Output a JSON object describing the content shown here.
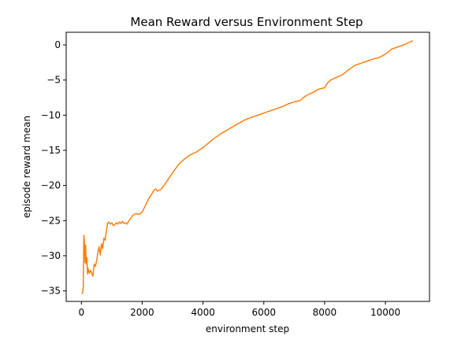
{
  "chart_data": {
    "type": "line",
    "title": "Mean Reward versus Environment Step",
    "xlabel": "environment step",
    "ylabel": "episode reward mean",
    "xlim": [
      -500,
      11450
    ],
    "ylim": [
      -36.5,
      1.8
    ],
    "xticks": [
      0,
      2000,
      4000,
      6000,
      8000,
      10000
    ],
    "yticks": [
      -35,
      -30,
      -25,
      -20,
      -15,
      -10,
      -5,
      0
    ],
    "grid": false,
    "series": [
      {
        "color": "#ff7f0e",
        "x": [
          0,
          40,
          60,
          80,
          100,
          120,
          140,
          160,
          180,
          200,
          220,
          260,
          300,
          340,
          380,
          420,
          460,
          500,
          540,
          580,
          620,
          660,
          700,
          740,
          780,
          820,
          860,
          900,
          950,
          1000,
          1050,
          1100,
          1150,
          1200,
          1250,
          1300,
          1350,
          1400,
          1450,
          1500,
          1550,
          1600,
          1650,
          1700,
          1800,
          1900,
          2000,
          2100,
          2200,
          2300,
          2400,
          2450,
          2500,
          2600,
          2700,
          2800,
          2900,
          3000,
          3200,
          3400,
          3600,
          3800,
          4000,
          4200,
          4400,
          4600,
          4800,
          5000,
          5200,
          5400,
          5600,
          5800,
          6000,
          6200,
          6400,
          6600,
          6800,
          7000,
          7200,
          7300,
          7400,
          7600,
          7800,
          8000,
          8100,
          8200,
          8400,
          8600,
          8800,
          9000,
          9200,
          9400,
          9600,
          9800,
          10000,
          10100,
          10200,
          10400,
          10600,
          10800,
          10900
        ],
        "y": [
          -35.4,
          -35.3,
          -34.5,
          -27.1,
          -28.0,
          -31.0,
          -28.5,
          -31.2,
          -30.3,
          -32.6,
          -31.8,
          -32.5,
          -32.1,
          -32.5,
          -32.9,
          -31.2,
          -31.5,
          -30.7,
          -29.6,
          -28.7,
          -29.9,
          -28.3,
          -29.0,
          -27.5,
          -27.8,
          -26.5,
          -25.4,
          -25.2,
          -25.5,
          -25.3,
          -25.7,
          -25.6,
          -25.3,
          -25.5,
          -25.2,
          -25.4,
          -25.1,
          -25.4,
          -25.3,
          -25.5,
          -25.1,
          -24.8,
          -24.5,
          -24.2,
          -24.0,
          -24.1,
          -23.8,
          -22.9,
          -22.0,
          -21.3,
          -20.6,
          -20.5,
          -20.8,
          -20.6,
          -20.1,
          -19.5,
          -18.8,
          -18.2,
          -17.0,
          -16.2,
          -15.6,
          -15.2,
          -14.6,
          -13.9,
          -13.2,
          -12.6,
          -12.1,
          -11.6,
          -11.1,
          -10.6,
          -10.3,
          -10.0,
          -9.7,
          -9.4,
          -9.1,
          -8.8,
          -8.4,
          -8.1,
          -7.9,
          -7.5,
          -7.2,
          -6.8,
          -6.3,
          -6.1,
          -5.4,
          -5.0,
          -4.6,
          -4.2,
          -3.5,
          -2.9,
          -2.6,
          -2.3,
          -2.0,
          -1.8,
          -1.3,
          -1.0,
          -0.6,
          -0.3,
          0.0,
          0.4,
          0.6
        ]
      }
    ]
  }
}
